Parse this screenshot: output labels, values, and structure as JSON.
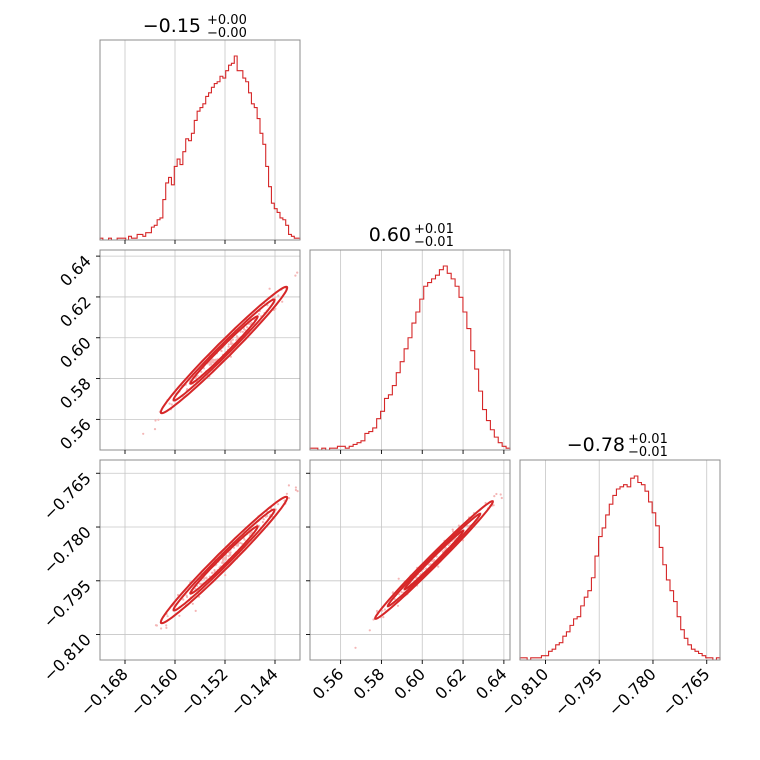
{
  "colors": {
    "primary": "#d62728",
    "scatter": "#f4b6b6"
  },
  "chart_data": {
    "type": "corner",
    "titles": [
      {
        "value": "−0.15",
        "plus": "+0.00",
        "minus": "−0.00"
      },
      {
        "value": "0.60",
        "plus": "+0.01",
        "minus": "−0.01"
      },
      {
        "value": "−0.78",
        "plus": "+0.01",
        "minus": "−0.01"
      }
    ],
    "params": [
      {
        "range": [
          -0.172,
          -0.14
        ],
        "ticks": [
          -0.168,
          -0.16,
          -0.152,
          -0.144
        ],
        "tick_labels": [
          "−0.168",
          "−0.160",
          "−0.152",
          "−0.144"
        ]
      },
      {
        "range": [
          0.545,
          0.643
        ],
        "ticks": [
          0.56,
          0.58,
          0.6,
          0.62,
          0.64
        ],
        "tick_labels": [
          "0.56",
          "0.58",
          "0.60",
          "0.62",
          "0.64"
        ]
      },
      {
        "range": [
          -0.8171,
          -0.7613
        ],
        "ticks": [
          -0.81,
          -0.795,
          -0.78,
          -0.765
        ],
        "tick_labels": [
          "−0.810",
          "−0.795",
          "−0.780",
          "−0.765"
        ]
      }
    ],
    "y_tick_labels": {
      "row1": [
        "0.56",
        "0.58",
        "0.60",
        "0.62",
        "0.64"
      ],
      "row2": [
        "−0.810",
        "−0.795",
        "−0.780",
        "−0.765"
      ]
    },
    "histograms": [
      [
        1,
        0,
        0,
        1,
        0,
        0,
        1,
        1,
        1,
        0,
        2,
        1,
        1,
        3,
        3,
        2,
        4,
        4,
        7,
        8,
        11,
        12,
        22,
        31,
        34,
        30,
        40,
        44,
        41,
        48,
        55,
        54,
        58,
        65,
        70,
        72,
        74,
        78,
        80,
        83,
        85,
        86,
        89,
        88,
        92,
        95,
        96,
        100,
        92,
        92,
        88,
        86,
        80,
        74,
        72,
        66,
        58,
        52,
        40,
        29,
        20,
        17,
        15,
        12,
        11,
        8,
        3,
        2,
        1,
        1
      ],
      [
        1,
        1,
        0,
        1,
        0,
        1,
        1,
        2,
        2,
        1,
        2,
        3,
        4,
        5,
        9,
        10,
        12,
        17,
        21,
        28,
        30,
        35,
        42,
        48,
        55,
        61,
        69,
        75,
        82,
        89,
        91,
        93,
        95,
        98,
        100,
        96,
        93,
        89,
        83,
        75,
        66,
        54,
        44,
        32,
        22,
        16,
        11,
        7,
        4,
        2,
        1
      ],
      [
        1,
        1,
        0,
        1,
        1,
        1,
        2,
        2,
        4,
        5,
        7,
        8,
        11,
        13,
        16,
        19,
        20,
        25,
        29,
        32,
        38,
        48,
        57,
        61,
        67,
        72,
        76,
        79,
        80,
        81,
        80,
        84,
        85,
        82,
        81,
        78,
        73,
        68,
        62,
        52,
        44,
        37,
        32,
        27,
        20,
        14,
        10,
        7,
        5,
        4,
        3,
        2,
        1,
        1,
        0,
        1
      ]
    ],
    "pairs": [
      {
        "x": 0,
        "y": 1,
        "slope": 1.0,
        "contours": [
          {
            "u": 0.15,
            "w": 0.013
          },
          {
            "u": 0.12,
            "w": 0.009
          },
          {
            "u": 0.08,
            "w": 0.006
          }
        ]
      },
      {
        "x": 0,
        "y": 2,
        "slope": 1.0,
        "contours": [
          {
            "u": 0.15,
            "w": 0.013
          },
          {
            "u": 0.12,
            "w": 0.009
          },
          {
            "u": 0.08,
            "w": 0.006
          }
        ]
      },
      {
        "x": 1,
        "y": 2,
        "slope": 1.0,
        "contours": [
          {
            "u": 0.14,
            "w": 0.009
          },
          {
            "u": 0.11,
            "w": 0.006
          },
          {
            "u": 0.07,
            "w": 0.004
          }
        ]
      }
    ],
    "grid": true
  }
}
